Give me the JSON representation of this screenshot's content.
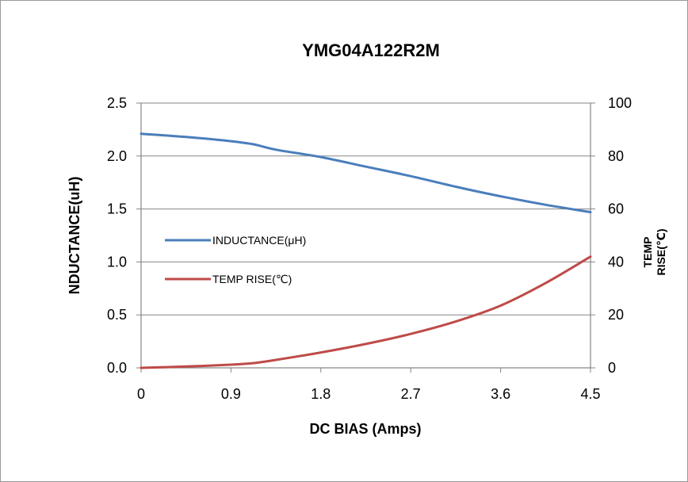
{
  "chart_data": {
    "type": "line",
    "title": "YMG04A122R2M",
    "xlabel": "DC BIAS (Amps)",
    "ylabel": "NDUCTANCE(uH)",
    "y2label_lines": [
      "TEMP",
      "RISE(℃)"
    ],
    "x_ticks": [
      "0",
      "0.9",
      "1.8",
      "2.7",
      "3.6",
      "4.5"
    ],
    "y_ticks": [
      "0.0",
      "0.5",
      "1.0",
      "1.5",
      "2.0",
      "2.5"
    ],
    "y2_ticks": [
      "0",
      "20",
      "40",
      "60",
      "80",
      "100"
    ],
    "xlim": [
      0,
      4.5
    ],
    "ylim": [
      0,
      2.5
    ],
    "y2lim": [
      0,
      100
    ],
    "grid": "horizontal",
    "legend_position": "center-left",
    "series": [
      {
        "name": "INDUCTANCE(μH)",
        "axis": "left",
        "color": "#4a7ebb",
        "x": [
          0,
          0.45,
          0.9,
          1.13,
          1.35,
          1.8,
          2.25,
          2.7,
          3.15,
          3.6,
          4.05,
          4.5
        ],
        "values": [
          2.21,
          2.18,
          2.14,
          2.11,
          2.06,
          1.99,
          1.9,
          1.81,
          1.71,
          1.62,
          1.54,
          1.47
        ]
      },
      {
        "name": "TEMP RISE(℃)",
        "axis": "right",
        "color": "#be4b48",
        "x": [
          0,
          0.45,
          0.9,
          1.13,
          1.35,
          1.8,
          2.25,
          2.7,
          3.15,
          3.6,
          4.05,
          4.5
        ],
        "values": [
          0,
          0.5,
          1.2,
          1.8,
          3.0,
          5.8,
          9.0,
          12.8,
          17.5,
          23.5,
          32.0,
          42.0
        ]
      }
    ]
  }
}
